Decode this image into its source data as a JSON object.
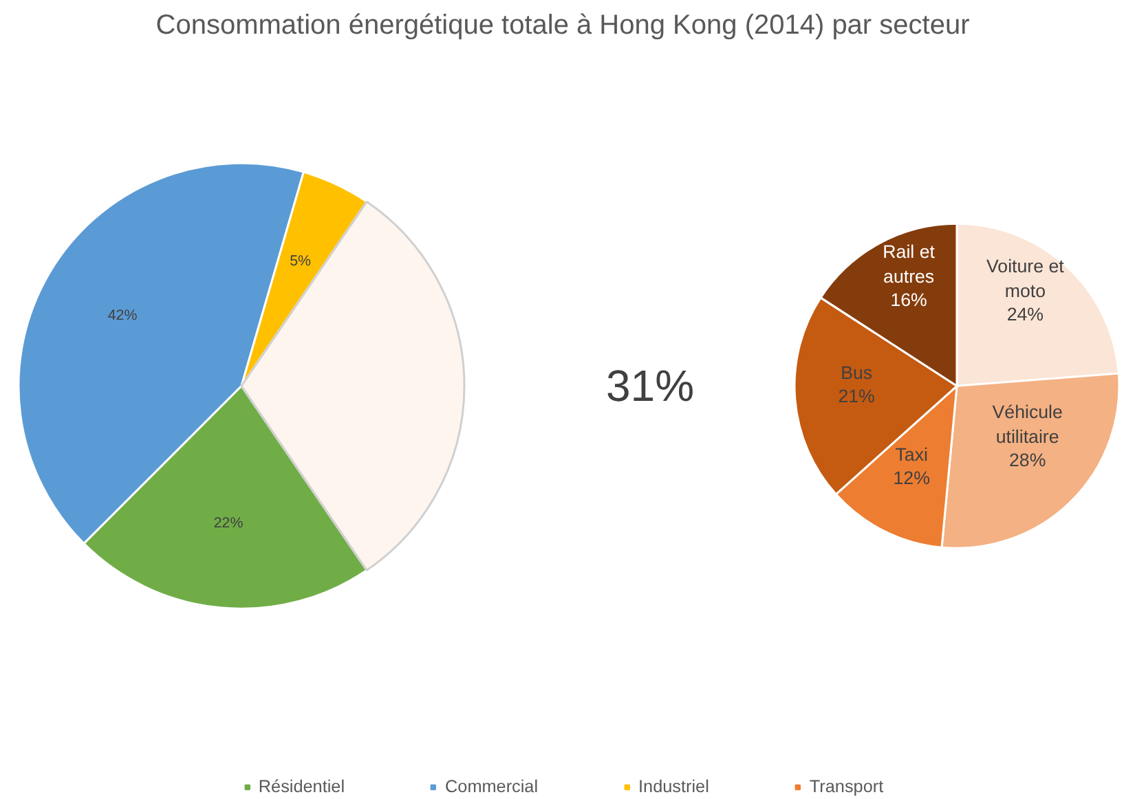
{
  "chart_data": [
    {
      "type": "pie",
      "title": "Consommation énergétique totale à Hong Kong (2014) par secteur",
      "categories": [
        "Résidentiel",
        "Commercial",
        "Industriel",
        "Transport"
      ],
      "values": [
        22,
        42,
        5,
        31
      ],
      "colors": [
        "#70ad47",
        "#5b9bd5",
        "#ffc000",
        "#ed7d31"
      ],
      "value_labels": [
        "22%",
        "42%",
        "5%",
        "31%"
      ],
      "legend": "bottom"
    },
    {
      "type": "pie",
      "categories": [
        "Voiture et moto",
        "Véhicule utilitaire",
        "Taxi",
        "Bus",
        "Rail et autres"
      ],
      "values": [
        24,
        28,
        12,
        21,
        16
      ],
      "colors": [
        "#fbe5d6",
        "#f4b183",
        "#ed7d31",
        "#c55a11",
        "#843c0c"
      ],
      "value_labels": [
        "24%",
        "28%",
        "12%",
        "21%",
        "16%"
      ]
    }
  ]
}
